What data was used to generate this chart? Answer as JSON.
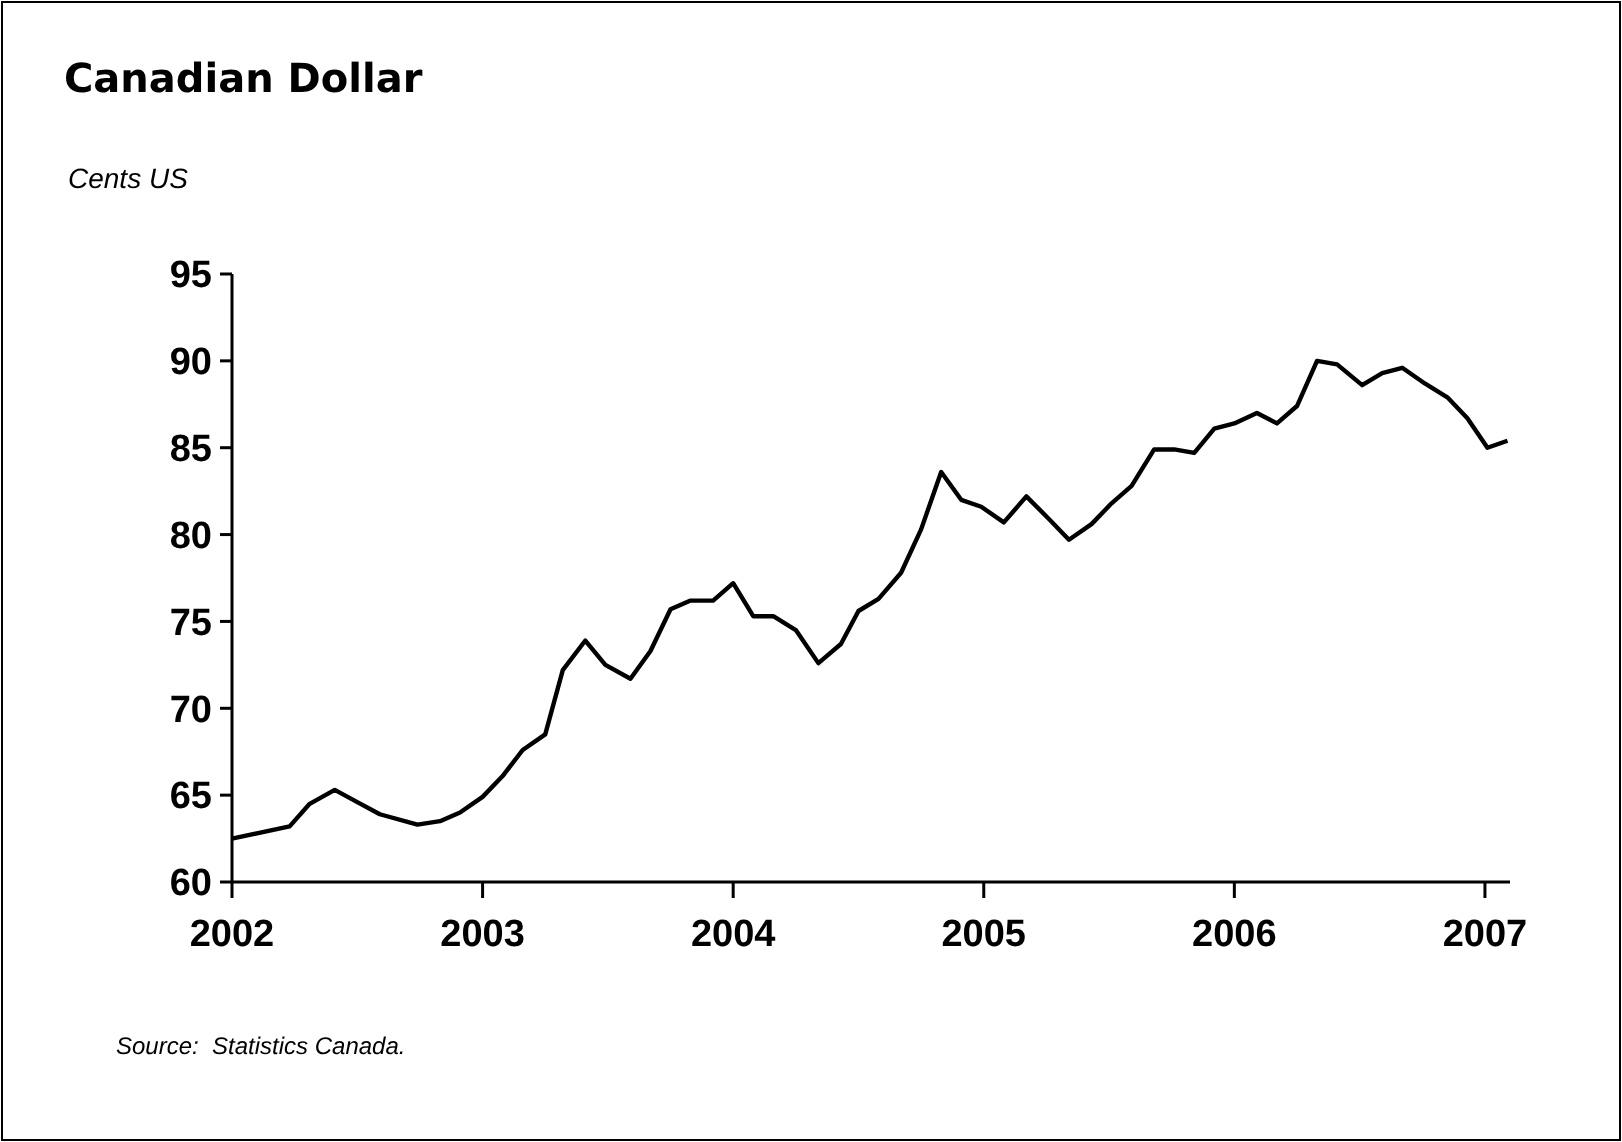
{
  "chart_data": {
    "type": "line",
    "title": "Canadian Dollar",
    "ylabel": "Cents US",
    "annotations": [
      "Source:  Statistics Canada."
    ],
    "x": [
      2002.0,
      2002.23,
      2002.31,
      2002.41,
      2002.5,
      2002.59,
      2002.74,
      2002.83,
      2002.91,
      2003.0,
      2003.08,
      2003.16,
      2003.25,
      2003.32,
      2003.41,
      2003.49,
      2003.59,
      2003.67,
      2003.75,
      2003.83,
      2003.92,
      2004.0,
      2004.08,
      2004.16,
      2004.25,
      2004.34,
      2004.43,
      2004.5,
      2004.58,
      2004.67,
      2004.75,
      2004.83,
      2004.91,
      2004.99,
      2005.08,
      2005.17,
      2005.26,
      2005.34,
      2005.43,
      2005.51,
      2005.59,
      2005.68,
      2005.76,
      2005.84,
      2005.92,
      2006.0,
      2006.09,
      2006.17,
      2006.25,
      2006.33,
      2006.41,
      2006.51,
      2006.59,
      2006.67,
      2006.76,
      2006.85,
      2006.93,
      2007.01,
      2007.09
    ],
    "series": [
      {
        "color": "#000000",
        "values": [
          62.5,
          63.2,
          64.5,
          65.3,
          64.6,
          63.9,
          63.3,
          63.5,
          64.0,
          64.9,
          66.1,
          67.6,
          68.5,
          72.2,
          73.9,
          72.5,
          71.7,
          73.3,
          75.7,
          76.2,
          76.2,
          77.2,
          75.3,
          75.3,
          74.5,
          72.6,
          73.7,
          75.6,
          76.3,
          77.8,
          80.3,
          83.6,
          82.0,
          81.6,
          80.7,
          82.2,
          80.9,
          79.7,
          80.6,
          81.8,
          82.8,
          84.9,
          84.9,
          84.7,
          86.1,
          86.4,
          87.0,
          86.4,
          87.4,
          90.0,
          89.8,
          88.6,
          89.3,
          89.6,
          88.7,
          87.9,
          86.7,
          85.0,
          85.4
        ]
      }
    ],
    "xlim": [
      2002,
      2007.1
    ],
    "xticks": [
      2002,
      2003,
      2004,
      2005,
      2006,
      2007
    ],
    "ylim": [
      60,
      95
    ],
    "yticks": [
      60,
      65,
      70,
      75,
      80,
      85,
      90,
      95
    ],
    "grid": false,
    "marker": "none",
    "line_style": "solid"
  }
}
